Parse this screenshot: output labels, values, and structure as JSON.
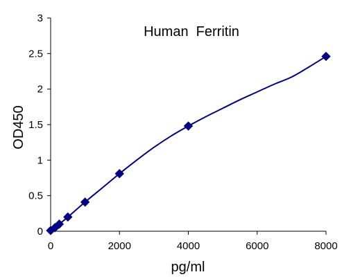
{
  "chart_data": {
    "type": "scatter",
    "title": "Human  Ferritin",
    "xlabel": "pg/ml",
    "ylabel": "OD450",
    "xlim": [
      0,
      8000
    ],
    "ylim": [
      0,
      3
    ],
    "xticks": [
      0,
      2000,
      4000,
      6000,
      8000
    ],
    "xtick_labels": [
      "0",
      "2000",
      "4000",
      "6000",
      "8000"
    ],
    "yticks": [
      0,
      0.5,
      1,
      1.5,
      2,
      2.5,
      3
    ],
    "ytick_labels": [
      "0",
      "0.5",
      "1",
      "1.5",
      "2",
      "2.5",
      "3"
    ],
    "grid": false,
    "legend": "none",
    "series": [
      {
        "marker": "diamond",
        "color": "#000080",
        "x": [
          0,
          125,
          250,
          500,
          1000,
          2000,
          4000,
          8000
        ],
        "y": [
          0.01,
          0.05,
          0.1,
          0.2,
          0.41,
          0.81,
          1.48,
          2.46
        ]
      }
    ],
    "fit_curve": {
      "color": "#000080",
      "x": [
        0,
        125,
        250,
        500,
        1000,
        1500,
        2000,
        2500,
        3000,
        3500,
        4000,
        4500,
        5000,
        5500,
        6000,
        6500,
        7000,
        7500,
        8000
      ],
      "y": [
        0.01,
        0.05,
        0.1,
        0.2,
        0.41,
        0.61,
        0.81,
        1.0,
        1.18,
        1.34,
        1.48,
        1.61,
        1.73,
        1.85,
        1.96,
        2.07,
        2.17,
        2.31,
        2.46
      ]
    }
  }
}
